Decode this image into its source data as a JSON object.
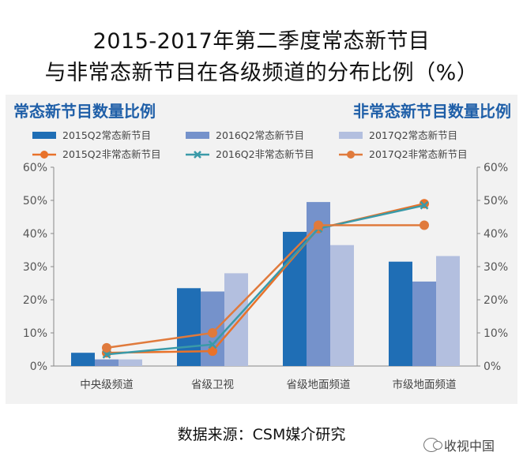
{
  "title_line1": "2015-2017年第二季度常态新节目",
  "title_line2": "与非常态新节目在各级频道的分布比例（%）",
  "source": "数据来源：CSM媒介研究",
  "watermark": "收视中国",
  "chart_data": {
    "type": "bar",
    "title": "2015-2017年第二季度常态新节目与非常态新节目在各级频道的分布比例（%）",
    "left_axis_title": "常态新节目数量比例",
    "right_axis_title": "非常态新节目数量比例",
    "categories": [
      "中央级频道",
      "省级卫视",
      "省级地面频道",
      "市级地面频道"
    ],
    "ylim": [
      0,
      60
    ],
    "y2lim": [
      0,
      60
    ],
    "yticks": [
      "0%",
      "10%",
      "20%",
      "30%",
      "40%",
      "50%",
      "60%"
    ],
    "bar_series": [
      {
        "name": "2015Q2常态新节目",
        "color": "#1f6eb5",
        "values": [
          4,
          23.5,
          40.5,
          31.5
        ]
      },
      {
        "name": "2016Q2常态新节目",
        "color": "#7592cb",
        "values": [
          2,
          22.5,
          49.5,
          25.5
        ]
      },
      {
        "name": "2017Q2常态新节目",
        "color": "#b3bfdf",
        "values": [
          2,
          28,
          36.5,
          33.2
        ]
      }
    ],
    "line_series": [
      {
        "name": "2015Q2非常态新节目",
        "color": "#e8722a",
        "marker": "circle",
        "values": [
          4,
          4.5,
          41.5,
          49
        ]
      },
      {
        "name": "2016Q2非常态新节目",
        "color": "#3a9aa8",
        "marker": "x",
        "values": [
          3.5,
          6.5,
          41.5,
          48.5
        ]
      },
      {
        "name": "2017Q2非常态新节目",
        "color": "#e07a3c",
        "marker": "circle",
        "values": [
          5.5,
          10,
          42.5,
          42.5
        ]
      }
    ]
  }
}
